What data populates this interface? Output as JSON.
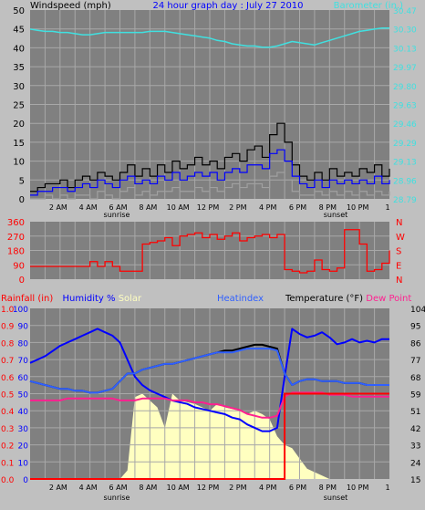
{
  "colors": {
    "background": "#c0c0c0",
    "plot_bg": "#808080",
    "grid": "#a8a8a8",
    "wind_gust": "#000000",
    "wind_avg": "#0000ff",
    "wind_min": "#a0a0a0",
    "barometer": "#40e0e0",
    "direction": "#ff0000",
    "humidity": "#0000ff",
    "heatindex": "#3060ff",
    "temperature": "#000000",
    "dewpoint": "#ff2090",
    "solar": "#ffffc0",
    "rainfall": "#ff0000",
    "title": "#0000ff",
    "label_black": "#000000",
    "label_blue": "#0000ff",
    "label_cyan": "#40e0e0",
    "label_red": "#ff0000",
    "label_yellow": "#ffffc0"
  },
  "chart_data": [
    {
      "type": "line",
      "title": "24 hour graph day : July 27 2010",
      "left_label": "Windspeed (mph)",
      "right_label": "Barometer (in.)",
      "ylim": [
        0,
        50
      ],
      "y_ticks": [
        "0",
        "5",
        "10",
        "15",
        "20",
        "25",
        "30",
        "35",
        "40",
        "45",
        "50"
      ],
      "y2lim": [
        28.79,
        30.47
      ],
      "y2_ticks": [
        "28.79",
        "28.96",
        "29.13",
        "29.29",
        "29.46",
        "29.63",
        "29.80",
        "29.97",
        "30.13",
        "30.30",
        "30.47"
      ],
      "x_ticks": [
        "2 AM",
        "4 AM",
        "6 AM",
        "8 AM",
        "10 AM",
        "12 PM",
        "2 PM",
        "4 PM",
        "6 PM",
        "8 PM",
        "10 PM",
        "1"
      ],
      "annotations": [
        "sunrise",
        "sunset"
      ],
      "x": [
        0,
        0.5,
        1,
        1.5,
        2,
        2.5,
        3,
        3.5,
        4,
        4.5,
        5,
        5.5,
        6,
        6.5,
        7,
        7.5,
        8,
        8.5,
        9,
        9.5,
        10,
        10.5,
        11,
        11.5,
        12,
        12.5,
        13,
        13.5,
        14,
        14.5,
        15,
        15.5,
        16,
        16.5,
        17,
        17.5,
        18,
        18.5,
        19,
        19.5,
        20,
        20.5,
        21,
        21.5,
        22,
        22.5,
        23,
        23.5,
        24
      ],
      "series": [
        {
          "name": "Barometer",
          "axis": "right",
          "values": [
            30.3,
            30.29,
            30.28,
            30.28,
            30.27,
            30.27,
            30.26,
            30.25,
            30.25,
            30.26,
            30.27,
            30.27,
            30.27,
            30.27,
            30.27,
            30.27,
            30.28,
            30.28,
            30.28,
            30.27,
            30.26,
            30.25,
            30.24,
            30.23,
            30.22,
            30.2,
            30.19,
            30.17,
            30.16,
            30.15,
            30.15,
            30.14,
            30.14,
            30.15,
            30.17,
            30.19,
            30.18,
            30.17,
            30.16,
            30.18,
            30.2,
            30.22,
            30.24,
            30.26,
            30.28,
            30.29,
            30.3,
            30.31,
            30.31
          ]
        },
        {
          "name": "Wind gust",
          "axis": "left",
          "values": [
            2,
            3,
            4,
            4,
            5,
            3,
            5,
            6,
            5,
            7,
            6,
            5,
            7,
            9,
            6,
            8,
            6,
            9,
            7,
            10,
            8,
            9,
            11,
            9,
            10,
            8,
            11,
            12,
            10,
            13,
            14,
            11,
            17,
            20,
            15,
            9,
            6,
            5,
            7,
            5,
            8,
            6,
            7,
            6,
            8,
            7,
            9,
            6,
            8
          ]
        },
        {
          "name": "Wind average",
          "axis": "left",
          "values": [
            1,
            2,
            2,
            3,
            3,
            2,
            3,
            4,
            3,
            5,
            4,
            3,
            5,
            6,
            4,
            5,
            4,
            6,
            5,
            7,
            5,
            6,
            7,
            6,
            7,
            5,
            7,
            8,
            7,
            9,
            9,
            8,
            12,
            13,
            10,
            6,
            4,
            3,
            5,
            3,
            5,
            4,
            5,
            4,
            5,
            4,
            6,
            4,
            5
          ]
        },
        {
          "name": "Wind minimum",
          "axis": "left",
          "values": [
            0,
            0,
            1,
            0,
            1,
            0,
            1,
            1,
            0,
            2,
            1,
            0,
            2,
            3,
            1,
            2,
            1,
            2,
            2,
            3,
            2,
            2,
            3,
            2,
            3,
            2,
            3,
            4,
            3,
            4,
            4,
            3,
            6,
            7,
            5,
            2,
            1,
            1,
            2,
            1,
            2,
            1,
            2,
            1,
            2,
            1,
            2,
            1,
            2
          ]
        }
      ]
    },
    {
      "type": "line",
      "name": "Wind direction",
      "ylim": [
        0,
        360
      ],
      "y_ticks": [
        "0",
        "90",
        "180",
        "270",
        "360"
      ],
      "y2_ticks": [
        "N",
        "W",
        "S",
        "E",
        "N"
      ],
      "x_ticks": [
        "2 AM",
        "4 AM",
        "6 AM",
        "8 AM",
        "10 AM",
        "12 PM",
        "2 PM",
        "4 PM",
        "6 PM",
        "8 PM",
        "10 PM",
        "1"
      ],
      "x": [
        0,
        0.5,
        1,
        1.5,
        2,
        2.5,
        3,
        3.5,
        4,
        4.5,
        5,
        5.5,
        6,
        6.5,
        7,
        7.5,
        8,
        8.5,
        9,
        9.5,
        10,
        10.5,
        11,
        11.5,
        12,
        12.5,
        13,
        13.5,
        14,
        14.5,
        15,
        15.5,
        16,
        16.5,
        17,
        17.5,
        18,
        18.5,
        19,
        19.5,
        20,
        20.5,
        21,
        21.5,
        22,
        22.5,
        23,
        23.5,
        24
      ],
      "series": [
        {
          "name": "Direction",
          "values": [
            80,
            80,
            80,
            80,
            80,
            80,
            80,
            80,
            110,
            80,
            110,
            80,
            50,
            50,
            50,
            220,
            230,
            240,
            260,
            210,
            270,
            280,
            290,
            260,
            280,
            250,
            270,
            290,
            240,
            260,
            270,
            280,
            260,
            280,
            60,
            50,
            40,
            50,
            120,
            60,
            50,
            70,
            310,
            310,
            220,
            50,
            60,
            100,
            180
          ]
        }
      ]
    },
    {
      "type": "line",
      "rain_label": "Rainfall (in)",
      "humidity_label": "Humidity %",
      "solar_label": "Solar",
      "heatindex_label": "Heatindex",
      "temperature_label": "Temperature (°F)",
      "dewpoint_label": "Dew Point",
      "rain_ticks": [
        "0.0",
        "0.1",
        "0.2",
        "0.3",
        "0.4",
        "0.5",
        "0.6",
        "0.7",
        "0.8",
        "0.9",
        "1.0"
      ],
      "humidity_ticks": [
        "0",
        "10",
        "20",
        "30",
        "40",
        "50",
        "60",
        "70",
        "80",
        "90",
        "100"
      ],
      "temp_ticks": [
        "15",
        "24",
        "33",
        "42",
        "51",
        "59",
        "68",
        "77",
        "86",
        "95",
        "104"
      ],
      "ylim": [
        0,
        1.0
      ],
      "y_mid_lim": [
        0,
        100
      ],
      "y2lim": [
        15,
        104
      ],
      "x_ticks": [
        "2 AM",
        "4 AM",
        "6 AM",
        "8 AM",
        "10 AM",
        "12 PM",
        "2 PM",
        "4 PM",
        "6 PM",
        "8 PM",
        "10 PM",
        "1"
      ],
      "annotations": [
        "sunrise",
        "sunset"
      ],
      "x": [
        0,
        0.5,
        1,
        1.5,
        2,
        2.5,
        3,
        3.5,
        4,
        4.5,
        5,
        5.5,
        6,
        6.5,
        7,
        7.5,
        8,
        8.5,
        9,
        9.5,
        10,
        10.5,
        11,
        11.5,
        12,
        12.5,
        13,
        13.5,
        14,
        14.5,
        15,
        15.5,
        16,
        16.5,
        17,
        17.5,
        18,
        18.5,
        19,
        19.5,
        20,
        20.5,
        21,
        21.5,
        22,
        22.5,
        23,
        23.5,
        24
      ],
      "series": [
        {
          "name": "Solar",
          "axis": "humidity",
          "values": [
            0,
            0,
            0,
            0,
            0,
            0,
            0,
            0,
            0,
            0,
            0,
            0,
            0,
            5,
            48,
            50,
            46,
            42,
            30,
            50,
            46,
            45,
            44,
            42,
            40,
            44,
            42,
            41,
            40,
            38,
            40,
            38,
            35,
            25,
            20,
            18,
            12,
            6,
            4,
            2,
            0,
            0,
            0,
            0,
            0,
            0,
            0,
            0,
            0
          ]
        },
        {
          "name": "Humidity",
          "axis": "humidity",
          "values": [
            68,
            70,
            72,
            75,
            78,
            80,
            82,
            84,
            86,
            88,
            86,
            84,
            80,
            70,
            60,
            55,
            52,
            50,
            48,
            46,
            45,
            44,
            42,
            41,
            40,
            39,
            38,
            36,
            35,
            32,
            30,
            28,
            28,
            30,
            60,
            88,
            85,
            83,
            84,
            86,
            83,
            79,
            80,
            82,
            80,
            81,
            80,
            82,
            82
          ]
        },
        {
          "name": "Temperature",
          "axis": "temp",
          "values": [
            66,
            65,
            64,
            63,
            62,
            62,
            61,
            61,
            60,
            60,
            61,
            62,
            66,
            70,
            70,
            72,
            73,
            74,
            75,
            75,
            76,
            77,
            78,
            79,
            80,
            81,
            82,
            82,
            83,
            84,
            85,
            85,
            84,
            83,
            70,
            64,
            66,
            67,
            67,
            66,
            66,
            66,
            65,
            65,
            65,
            64,
            64,
            64,
            64
          ]
        },
        {
          "name": "Heatindex",
          "axis": "temp",
          "values": [
            66,
            65,
            64,
            63,
            62,
            62,
            61,
            61,
            60,
            60,
            61,
            62,
            66,
            70,
            70,
            72,
            73,
            74,
            75,
            75,
            76,
            77,
            78,
            79,
            80,
            81,
            81,
            81,
            82,
            83,
            83,
            83,
            83,
            82,
            70,
            64,
            66,
            67,
            67,
            66,
            66,
            66,
            65,
            65,
            65,
            64,
            64,
            64,
            64
          ]
        },
        {
          "name": "Dew Point",
          "axis": "temp",
          "values": [
            56,
            56,
            56,
            56,
            56,
            57,
            57,
            57,
            57,
            57,
            57,
            57,
            56,
            56,
            56,
            57,
            57,
            57,
            57,
            56,
            56,
            56,
            55,
            55,
            54,
            54,
            53,
            52,
            51,
            49,
            48,
            47,
            47,
            48,
            58,
            60,
            60,
            60,
            60,
            60,
            59,
            59,
            59,
            58,
            58,
            58,
            58,
            58,
            58
          ]
        },
        {
          "name": "Rainfall",
          "axis": "rain",
          "values": [
            0,
            0,
            0,
            0,
            0,
            0,
            0,
            0,
            0,
            0,
            0,
            0,
            0,
            0,
            0,
            0,
            0,
            0,
            0,
            0,
            0,
            0,
            0,
            0,
            0,
            0,
            0,
            0,
            0,
            0,
            0,
            0,
            0,
            0,
            0.5,
            0.5,
            0.5,
            0.5,
            0.5,
            0.5,
            0.5,
            0.5,
            0.5,
            0.5,
            0.5,
            0.5,
            0.5,
            0.5,
            0.5
          ]
        }
      ]
    }
  ]
}
